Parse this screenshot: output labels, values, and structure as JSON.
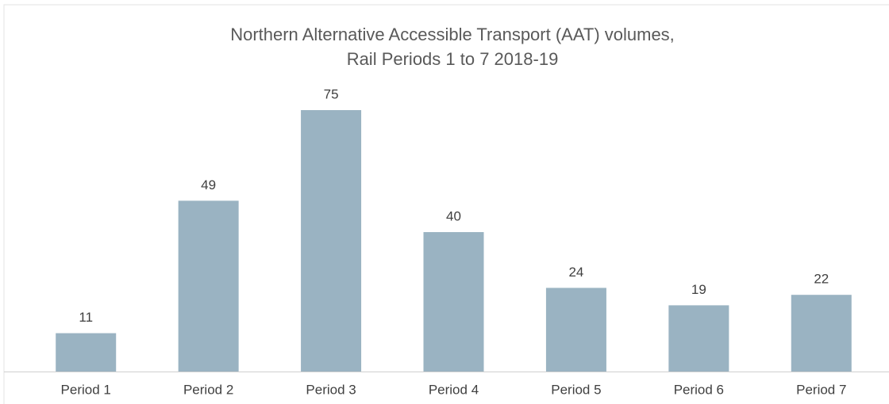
{
  "chart_data": {
    "type": "bar",
    "title": [
      "Northern Alternative Accessible Transport (AAT) volumes,",
      "Rail Periods 1 to 7 2018-19"
    ],
    "categories": [
      "Period 1",
      "Period 2",
      "Period 3",
      "Period 4",
      "Period 5",
      "Period 6",
      "Period 7"
    ],
    "values": [
      11,
      49,
      75,
      40,
      24,
      19,
      22
    ],
    "color": "#9ab3c2"
  }
}
